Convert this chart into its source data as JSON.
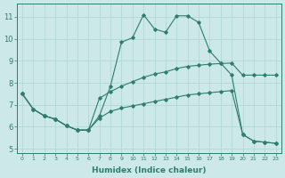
{
  "xlabel": "Humidex (Indice chaleur)",
  "ylabel": "",
  "bg_color": "#cce8e8",
  "line_color": "#2e7d6e",
  "grid_color": "#b0d8d8",
  "xlim": [
    -0.5,
    23.5
  ],
  "ylim": [
    4.8,
    11.6
  ],
  "yticks": [
    5,
    6,
    7,
    8,
    9,
    10,
    11
  ],
  "xticks": [
    0,
    1,
    2,
    3,
    4,
    5,
    6,
    7,
    8,
    9,
    10,
    11,
    12,
    13,
    14,
    15,
    16,
    17,
    18,
    19,
    20,
    21,
    22,
    23
  ],
  "line1_x": [
    0,
    1,
    2,
    3,
    4,
    5,
    6,
    7,
    8,
    9,
    10,
    11,
    12,
    13,
    14,
    15,
    16,
    17,
    18,
    19,
    20,
    21,
    22,
    23
  ],
  "line1_y": [
    7.5,
    6.8,
    6.5,
    6.35,
    6.05,
    5.85,
    5.85,
    6.5,
    7.85,
    9.85,
    10.05,
    11.1,
    10.45,
    10.3,
    11.05,
    11.05,
    10.75,
    9.45,
    8.9,
    8.35,
    5.65,
    5.35,
    5.3,
    5.25
  ],
  "line2_x": [
    0,
    1,
    2,
    3,
    4,
    5,
    6,
    7,
    8,
    9,
    10,
    11,
    12,
    13,
    14,
    15,
    16,
    17,
    18,
    19,
    20,
    21,
    22,
    23
  ],
  "line2_y": [
    7.5,
    6.8,
    6.5,
    6.35,
    6.05,
    5.85,
    5.85,
    7.3,
    7.6,
    7.85,
    8.05,
    8.25,
    8.4,
    8.5,
    8.65,
    8.75,
    8.8,
    8.85,
    8.88,
    8.9,
    8.35,
    8.35,
    8.35,
    8.35
  ],
  "line3_x": [
    0,
    1,
    2,
    3,
    4,
    5,
    6,
    7,
    8,
    9,
    10,
    11,
    12,
    13,
    14,
    15,
    16,
    17,
    18,
    19,
    20,
    21,
    22,
    23
  ],
  "line3_y": [
    7.5,
    6.8,
    6.5,
    6.35,
    6.05,
    5.85,
    5.85,
    6.4,
    6.7,
    6.85,
    6.95,
    7.05,
    7.15,
    7.25,
    7.35,
    7.45,
    7.5,
    7.55,
    7.6,
    7.65,
    5.65,
    5.35,
    5.3,
    5.25
  ],
  "marker": "D",
  "markersize": 1.8,
  "linewidth": 0.8,
  "xlabel_fontsize": 6.5,
  "xtick_fontsize": 4.5,
  "ytick_fontsize": 6.0
}
